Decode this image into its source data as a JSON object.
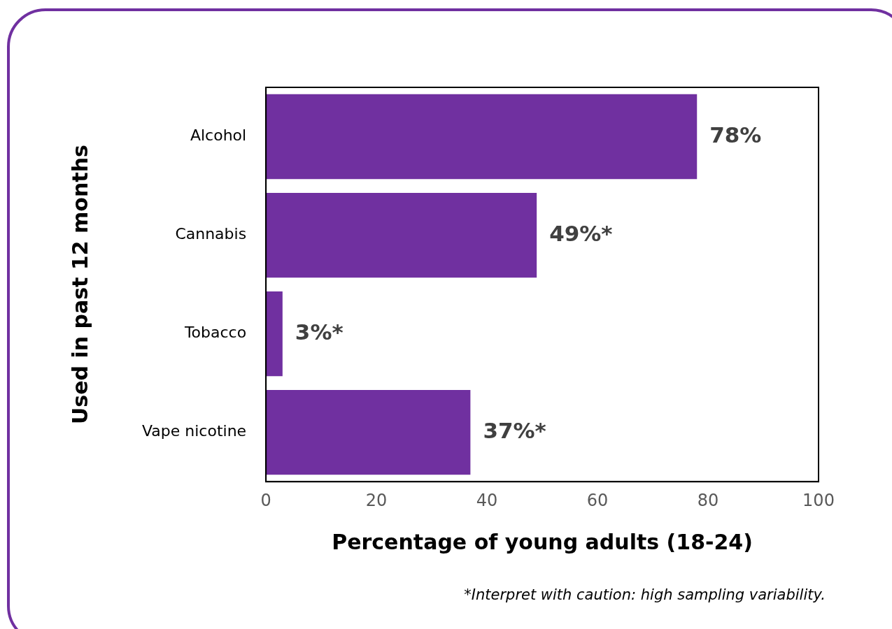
{
  "chart_data": {
    "type": "bar",
    "orientation": "horizontal",
    "categories": [
      "Alcohol",
      "Cannabis",
      "Tobacco",
      "Vape nicotine"
    ],
    "values": [
      78,
      49,
      3,
      37
    ],
    "value_labels": [
      "78%",
      "49%*",
      "3%*",
      "37%*"
    ],
    "color": "#7030a0",
    "xlim": [
      0,
      100
    ],
    "xticks": [
      0,
      20,
      40,
      60,
      80,
      100
    ],
    "xlabel": "Percentage of young adults (18-24)",
    "ylabel": "Used in past 12 months",
    "annotations": [
      "*Interpret with caution: high sampling variability."
    ],
    "grid": false,
    "legend": false
  }
}
